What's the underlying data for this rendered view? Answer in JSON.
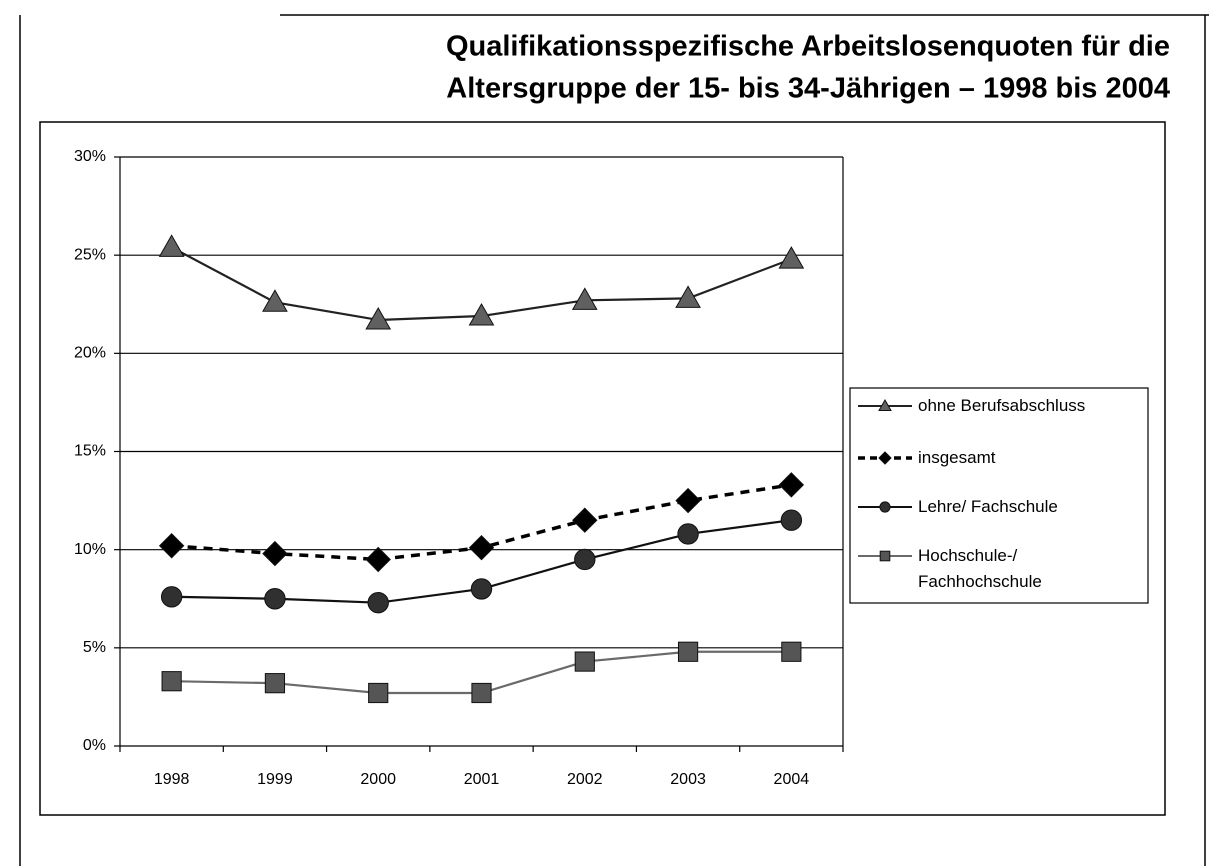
{
  "chart_data": {
    "type": "line",
    "title": "Qualifikationsspezifische Arbeitslosenquoten für die",
    "subtitle": "Altersgruppe der 15- bis 34-Jährigen – 1998 bis 2004",
    "categories": [
      "1998",
      "1999",
      "2000",
      "2001",
      "2002",
      "2003",
      "2004"
    ],
    "series": [
      {
        "name": "ohne Berufsabschluss",
        "color": "#222222",
        "marker": "triangle",
        "marker_color": "#606060",
        "dashed": false,
        "values": [
          25.4,
          22.6,
          21.7,
          21.9,
          22.7,
          22.8,
          24.8
        ]
      },
      {
        "name": "insgesamt",
        "color": "#000000",
        "marker": "diamond",
        "marker_color": "#000000",
        "dashed": true,
        "values": [
          10.2,
          9.8,
          9.5,
          10.1,
          11.5,
          12.5,
          13.3
        ]
      },
      {
        "name": "Lehre/ Fachschule",
        "color": "#111111",
        "marker": "circle",
        "marker_color": "#303030",
        "dashed": false,
        "values": [
          7.6,
          7.5,
          7.3,
          8.0,
          9.5,
          10.8,
          11.5
        ]
      },
      {
        "name": "Hochschule-/\nFachhochschule",
        "color": "#6a6a6a",
        "marker": "square",
        "marker_color": "#555555",
        "dashed": false,
        "values": [
          3.3,
          3.2,
          2.7,
          2.7,
          4.3,
          4.8,
          4.8
        ]
      }
    ],
    "ylim": [
      0,
      30
    ],
    "yticks": [
      {
        "value": 0,
        "label": "0%"
      },
      {
        "value": 5,
        "label": "5%"
      },
      {
        "value": 10,
        "label": "10%"
      },
      {
        "value": 15,
        "label": "15%"
      },
      {
        "value": 20,
        "label": "20%"
      },
      {
        "value": 25,
        "label": "25%"
      },
      {
        "value": 30,
        "label": "30%"
      }
    ],
    "grid": true,
    "legend": "right"
  }
}
